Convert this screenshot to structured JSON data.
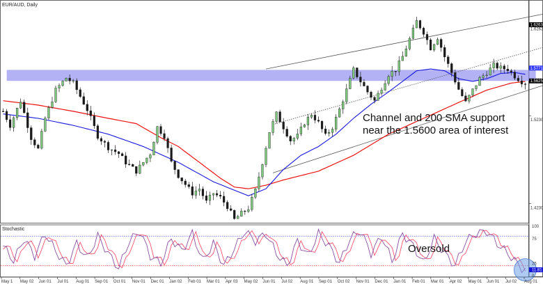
{
  "chart_data": {
    "type": "candlestick",
    "title": "EUR/AUD, Daily",
    "price_axis": {
      "ylim": [
        1.403,
        1.652
      ],
      "ticks": [
        1.6263,
        1.523,
        1.423
      ]
    },
    "price_labels": [
      {
        "value": 1.6263,
        "text": "1.6263",
        "bg": "#000000"
      },
      {
        "value": 1.5771,
        "text": "1.5771",
        "bg": "#2e36ff"
      },
      {
        "value": 1.5625,
        "text": "1.5625",
        "bg": "#000000"
      }
    ],
    "date_labels": [
      "May 1",
      "May 02",
      "Jun 01",
      "Jul 01",
      "Aug 01",
      "Sep 01",
      "Oct 01",
      "Nov 01",
      "Dec 01",
      "Jan 02",
      "Feb 01",
      "Mar 01",
      "Apr 03",
      "May 02",
      "Jun 01",
      "Jul 02",
      "Aug 01",
      "Sep 01",
      "Oct 02",
      "Nov 01",
      "Dec 01",
      "Jan 01",
      "Feb 01",
      "Mar 01",
      "Apr 02",
      "May 01",
      "Jun 01",
      "Jul 02",
      "Aug 01"
    ],
    "price_path": [
      [
        0,
        1.528
      ],
      [
        2,
        1.512
      ],
      [
        5,
        1.54
      ],
      [
        8,
        1.498
      ],
      [
        10,
        1.485
      ],
      [
        12,
        1.52
      ],
      [
        15,
        1.552
      ],
      [
        18,
        1.566
      ],
      [
        20,
        1.56
      ],
      [
        22,
        1.545
      ],
      [
        24,
        1.53
      ],
      [
        27,
        1.5
      ],
      [
        30,
        1.487
      ],
      [
        33,
        1.48
      ],
      [
        35,
        1.47
      ],
      [
        38,
        1.46
      ],
      [
        40,
        1.47
      ],
      [
        42,
        1.48
      ],
      [
        44,
        1.51
      ],
      [
        46,
        1.5
      ],
      [
        48,
        1.47
      ],
      [
        50,
        1.455
      ],
      [
        52,
        1.445
      ],
      [
        54,
        1.435
      ],
      [
        56,
        1.44
      ],
      [
        58,
        1.425
      ],
      [
        60,
        1.435
      ],
      [
        62,
        1.43
      ],
      [
        64,
        1.42
      ],
      [
        66,
        1.405
      ],
      [
        68,
        1.412
      ],
      [
        70,
        1.418
      ],
      [
        72,
        1.438
      ],
      [
        74,
        1.47
      ],
      [
        76,
        1.505
      ],
      [
        78,
        1.525
      ],
      [
        80,
        1.51
      ],
      [
        82,
        1.495
      ],
      [
        84,
        1.5
      ],
      [
        86,
        1.515
      ],
      [
        88,
        1.525
      ],
      [
        90,
        1.515
      ],
      [
        92,
        1.5
      ],
      [
        94,
        1.51
      ],
      [
        96,
        1.53
      ],
      [
        98,
        1.552
      ],
      [
        100,
        1.575
      ],
      [
        102,
        1.562
      ],
      [
        104,
        1.55
      ],
      [
        106,
        1.54
      ],
      [
        108,
        1.555
      ],
      [
        110,
        1.57
      ],
      [
        112,
        1.575
      ],
      [
        114,
        1.59
      ],
      [
        116,
        1.61
      ],
      [
        118,
        1.63
      ],
      [
        120,
        1.618
      ],
      [
        122,
        1.6
      ],
      [
        124,
        1.612
      ],
      [
        126,
        1.59
      ],
      [
        128,
        1.572
      ],
      [
        130,
        1.553
      ],
      [
        132,
        1.538
      ],
      [
        134,
        1.552
      ],
      [
        136,
        1.565
      ],
      [
        138,
        1.572
      ],
      [
        140,
        1.58
      ],
      [
        142,
        1.577
      ],
      [
        144,
        1.576
      ],
      [
        146,
        1.568
      ],
      [
        148,
        1.562
      ],
      [
        149,
        1.56
      ]
    ],
    "sma_blue": [
      [
        0,
        1.525
      ],
      [
        10,
        1.52
      ],
      [
        20,
        1.512
      ],
      [
        30,
        1.502
      ],
      [
        40,
        1.488
      ],
      [
        50,
        1.47
      ],
      [
        60,
        1.448
      ],
      [
        70,
        1.432
      ],
      [
        75,
        1.44
      ],
      [
        80,
        1.462
      ],
      [
        85,
        1.478
      ],
      [
        90,
        1.488
      ],
      [
        95,
        1.502
      ],
      [
        100,
        1.52
      ],
      [
        105,
        1.536
      ],
      [
        110,
        1.55
      ],
      [
        115,
        1.565
      ],
      [
        118,
        1.574
      ],
      [
        122,
        1.576
      ],
      [
        126,
        1.574
      ],
      [
        130,
        1.565
      ],
      [
        134,
        1.562
      ],
      [
        138,
        1.565
      ],
      [
        142,
        1.571
      ],
      [
        146,
        1.572
      ],
      [
        149,
        1.57
      ]
    ],
    "sma_red": [
      [
        0,
        1.54
      ],
      [
        10,
        1.535
      ],
      [
        20,
        1.528
      ],
      [
        25,
        1.524
      ],
      [
        30,
        1.52
      ],
      [
        38,
        1.514
      ],
      [
        45,
        1.498
      ],
      [
        50,
        1.488
      ],
      [
        56,
        1.47
      ],
      [
        62,
        1.452
      ],
      [
        66,
        1.442
      ],
      [
        70,
        1.44
      ],
      [
        75,
        1.444
      ],
      [
        80,
        1.45
      ],
      [
        90,
        1.46
      ],
      [
        100,
        1.478
      ],
      [
        110,
        1.502
      ],
      [
        120,
        1.52
      ],
      [
        130,
        1.538
      ],
      [
        138,
        1.552
      ],
      [
        145,
        1.56
      ],
      [
        149,
        1.562
      ]
    ],
    "zone": {
      "low": 1.5625,
      "high": 1.575,
      "x_from": 5,
      "x_to": 152
    },
    "channel_lines": [
      {
        "style": "solid",
        "from": [
          75,
          1.576
        ],
        "to": [
          165,
          1.647
        ]
      },
      {
        "style": "dotted",
        "from": [
          77,
          1.513
        ],
        "to": [
          195,
          1.647
        ]
      },
      {
        "style": "solid",
        "from": [
          77,
          1.458
        ],
        "to": [
          205,
          1.623
        ]
      }
    ],
    "annotations": {
      "main_line1": "Channel and 200 SMA support",
      "main_line2": "near the 1.5600 area of interest",
      "oscillator": "Oversold"
    },
    "oscillator": {
      "title": "Stochastic",
      "ylim": [
        0,
        100
      ],
      "ticks": [
        100,
        75,
        25,
        0
      ],
      "overbought": 80,
      "oversold": 20,
      "current_label": "11.81",
      "current_value": 11.81,
      "k_base": [
        [
          0,
          60
        ],
        [
          3,
          30
        ],
        [
          6,
          75
        ],
        [
          9,
          40
        ],
        [
          12,
          85
        ],
        [
          15,
          50
        ],
        [
          18,
          20
        ],
        [
          21,
          65
        ],
        [
          24,
          35
        ],
        [
          27,
          80
        ],
        [
          30,
          45
        ],
        [
          33,
          15
        ],
        [
          36,
          70
        ],
        [
          39,
          90
        ],
        [
          42,
          40
        ],
        [
          45,
          25
        ],
        [
          48,
          75
        ],
        [
          51,
          50
        ],
        [
          54,
          85
        ],
        [
          57,
          30
        ],
        [
          60,
          65
        ],
        [
          63,
          20
        ],
        [
          66,
          55
        ],
        [
          69,
          90
        ],
        [
          72,
          70
        ],
        [
          75,
          85
        ],
        [
          78,
          45
        ],
        [
          81,
          20
        ],
        [
          84,
          70
        ],
        [
          87,
          40
        ],
        [
          90,
          85
        ],
        [
          93,
          60
        ],
        [
          96,
          25
        ],
        [
          99,
          75
        ],
        [
          102,
          90
        ],
        [
          105,
          45
        ],
        [
          108,
          80
        ],
        [
          111,
          30
        ],
        [
          114,
          85
        ],
        [
          117,
          60
        ],
        [
          120,
          25
        ],
        [
          123,
          75
        ],
        [
          126,
          45
        ],
        [
          129,
          20
        ],
        [
          132,
          70
        ],
        [
          135,
          85
        ],
        [
          138,
          90
        ],
        [
          141,
          65
        ],
        [
          144,
          45
        ],
        [
          146,
          30
        ],
        [
          148,
          15
        ],
        [
          149,
          12
        ]
      ]
    },
    "colors": {
      "zone": "#9898f0",
      "sma_blue": "#1616e0",
      "sma_red": "#ee1111",
      "candle_up": "#1a1a1a",
      "candle_down": "#1a1a1a",
      "candle_up_body": "#7fc97f",
      "stoch_k": "#8a4fa0",
      "stoch_d": "#ff4060",
      "channel": "#555555",
      "ob_line": "#3333ff",
      "os_line": "#ff0000",
      "highlight": "#6fa0e8"
    }
  }
}
